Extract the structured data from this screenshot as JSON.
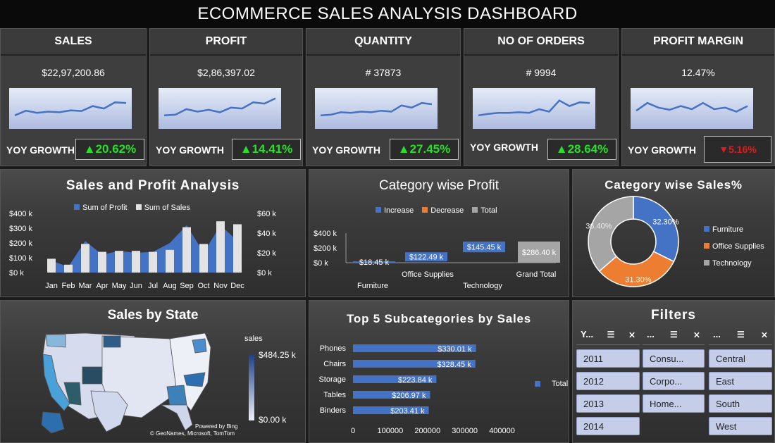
{
  "header": {
    "title": "ECOMMERCE SALES ANALYSIS DASHBOARD"
  },
  "kpis": [
    {
      "title": "SALES",
      "value": "$22,97,200.86",
      "yoy_label": "YOY GROWTH",
      "yoy": "20.62%",
      "direction": "up",
      "trend": [
        0.3,
        0.45,
        0.38,
        0.42,
        0.4,
        0.46,
        0.44,
        0.6,
        0.52,
        0.72,
        0.7
      ]
    },
    {
      "title": "PROFIT",
      "value": "$2,86,397.02",
      "yoy_label": "YOY GROWTH",
      "yoy": "14.41%",
      "direction": "up",
      "trend": [
        0.3,
        0.32,
        0.5,
        0.42,
        0.48,
        0.4,
        0.55,
        0.52,
        0.72,
        0.68,
        0.85
      ]
    },
    {
      "title": "QUANTITY",
      "value": "# 37873",
      "yoy_label": "YOY GROWTH",
      "yoy": "27.45%",
      "direction": "up",
      "trend": [
        0.3,
        0.32,
        0.4,
        0.38,
        0.42,
        0.4,
        0.45,
        0.42,
        0.62,
        0.55,
        0.7,
        0.66
      ]
    },
    {
      "title": "NO OF ORDERS",
      "value": "# 9994",
      "yoy_label": "YOY GROWTH",
      "yoy": "28.64%",
      "direction": "up",
      "trend": [
        0.3,
        0.35,
        0.38,
        0.38,
        0.4,
        0.38,
        0.5,
        0.42,
        0.78,
        0.6,
        0.72,
        0.7
      ]
    },
    {
      "title": "PROFIT MARGIN",
      "value": "12.47%",
      "yoy_label": "YOY GROWTH",
      "yoy": "5.16%",
      "direction": "down",
      "trend": [
        0.45,
        0.7,
        0.55,
        0.48,
        0.6,
        0.5,
        0.7,
        0.5,
        0.55,
        0.42,
        0.6
      ]
    }
  ],
  "sales_profit": {
    "title": "Sales and Profit Analysis",
    "legend_profit": "Sum of Profit",
    "legend_sales": "Sum of Sales",
    "left_ticks": [
      "$400 k",
      "$300 k",
      "$200 k",
      "$100 k",
      "$0 k"
    ],
    "right_ticks": [
      "$60 k",
      "$40 k",
      "$20 k",
      "$0 k"
    ],
    "chart_data": {
      "type": "bar",
      "categories": [
        "Jan",
        "Feb",
        "Mar",
        "Apr",
        "May",
        "Jun",
        "Jul",
        "Aug",
        "Sep",
        "Oct",
        "Nov",
        "Dec"
      ],
      "series": [
        {
          "name": "Sum of Sales",
          "values": [
            14,
            8,
            29,
            21,
            22,
            22,
            21,
            23,
            46,
            29,
            52,
            49
          ]
        },
        {
          "name": "Sum of Profit",
          "values": [
            12,
            6,
            32,
            18,
            22,
            20,
            21,
            30,
            48,
            20,
            48,
            32
          ]
        }
      ]
    }
  },
  "category_profit": {
    "title": "Category wise Profit",
    "legend": [
      "Increase",
      "Decrease",
      "Total"
    ],
    "ticks": [
      "$400 k",
      "$200 k",
      "$0 k"
    ],
    "chart_data": {
      "type": "bar",
      "categories": [
        "Furniture",
        "Office Supplies",
        "Technology",
        "Grand Total"
      ],
      "values": [
        18.45,
        122.49,
        145.45,
        286.4
      ],
      "labels": [
        "$18.45 k",
        "$122.49 k",
        "$145.45 k",
        "$286.40 k"
      ],
      "ylim": [
        0,
        400
      ]
    }
  },
  "category_sales": {
    "title": "Category wise Sales%",
    "chart_data": {
      "type": "pie",
      "labels": [
        "Furniture",
        "Office Supplies",
        "Technology"
      ],
      "values": [
        32.3,
        31.3,
        36.4
      ],
      "value_labels": [
        "32.30%",
        "31.30%",
        "36.40%"
      ],
      "colors": [
        "#4472c4",
        "#ed7d31",
        "#a5a5a5"
      ]
    }
  },
  "state_map": {
    "title": "Sales by State",
    "legend_title": "sales",
    "max_label": "$484.25 k",
    "min_label": "$0.00 k",
    "credit1": "Powered by Bing",
    "credit2": "© GeoNames, Microsoft, TomTom"
  },
  "top5": {
    "title": "Top 5 Subcategories by Sales",
    "legend": "Total",
    "x_ticks": [
      "0",
      "100000",
      "200000",
      "300000",
      "400000"
    ],
    "chart_data": {
      "type": "bar",
      "categories": [
        "Phones",
        "Chairs",
        "Storage",
        "Tables",
        "Binders"
      ],
      "values": [
        330010,
        328450,
        223840,
        206970,
        203410
      ],
      "labels": [
        "$330.01 k",
        "$328.45 k",
        "$223.84 k",
        "$206.97 k",
        "$203.41 k"
      ],
      "xlim": [
        0,
        450000
      ]
    }
  },
  "filters": {
    "title": "Filters",
    "year": {
      "header": "Y...",
      "items": [
        "2011",
        "2012",
        "2013",
        "2014"
      ]
    },
    "segment": {
      "header": "...",
      "items": [
        "Consu...",
        "Corpo...",
        "Home..."
      ]
    },
    "region": {
      "header": "...",
      "items": [
        "Central",
        "East",
        "South",
        "West"
      ]
    }
  }
}
